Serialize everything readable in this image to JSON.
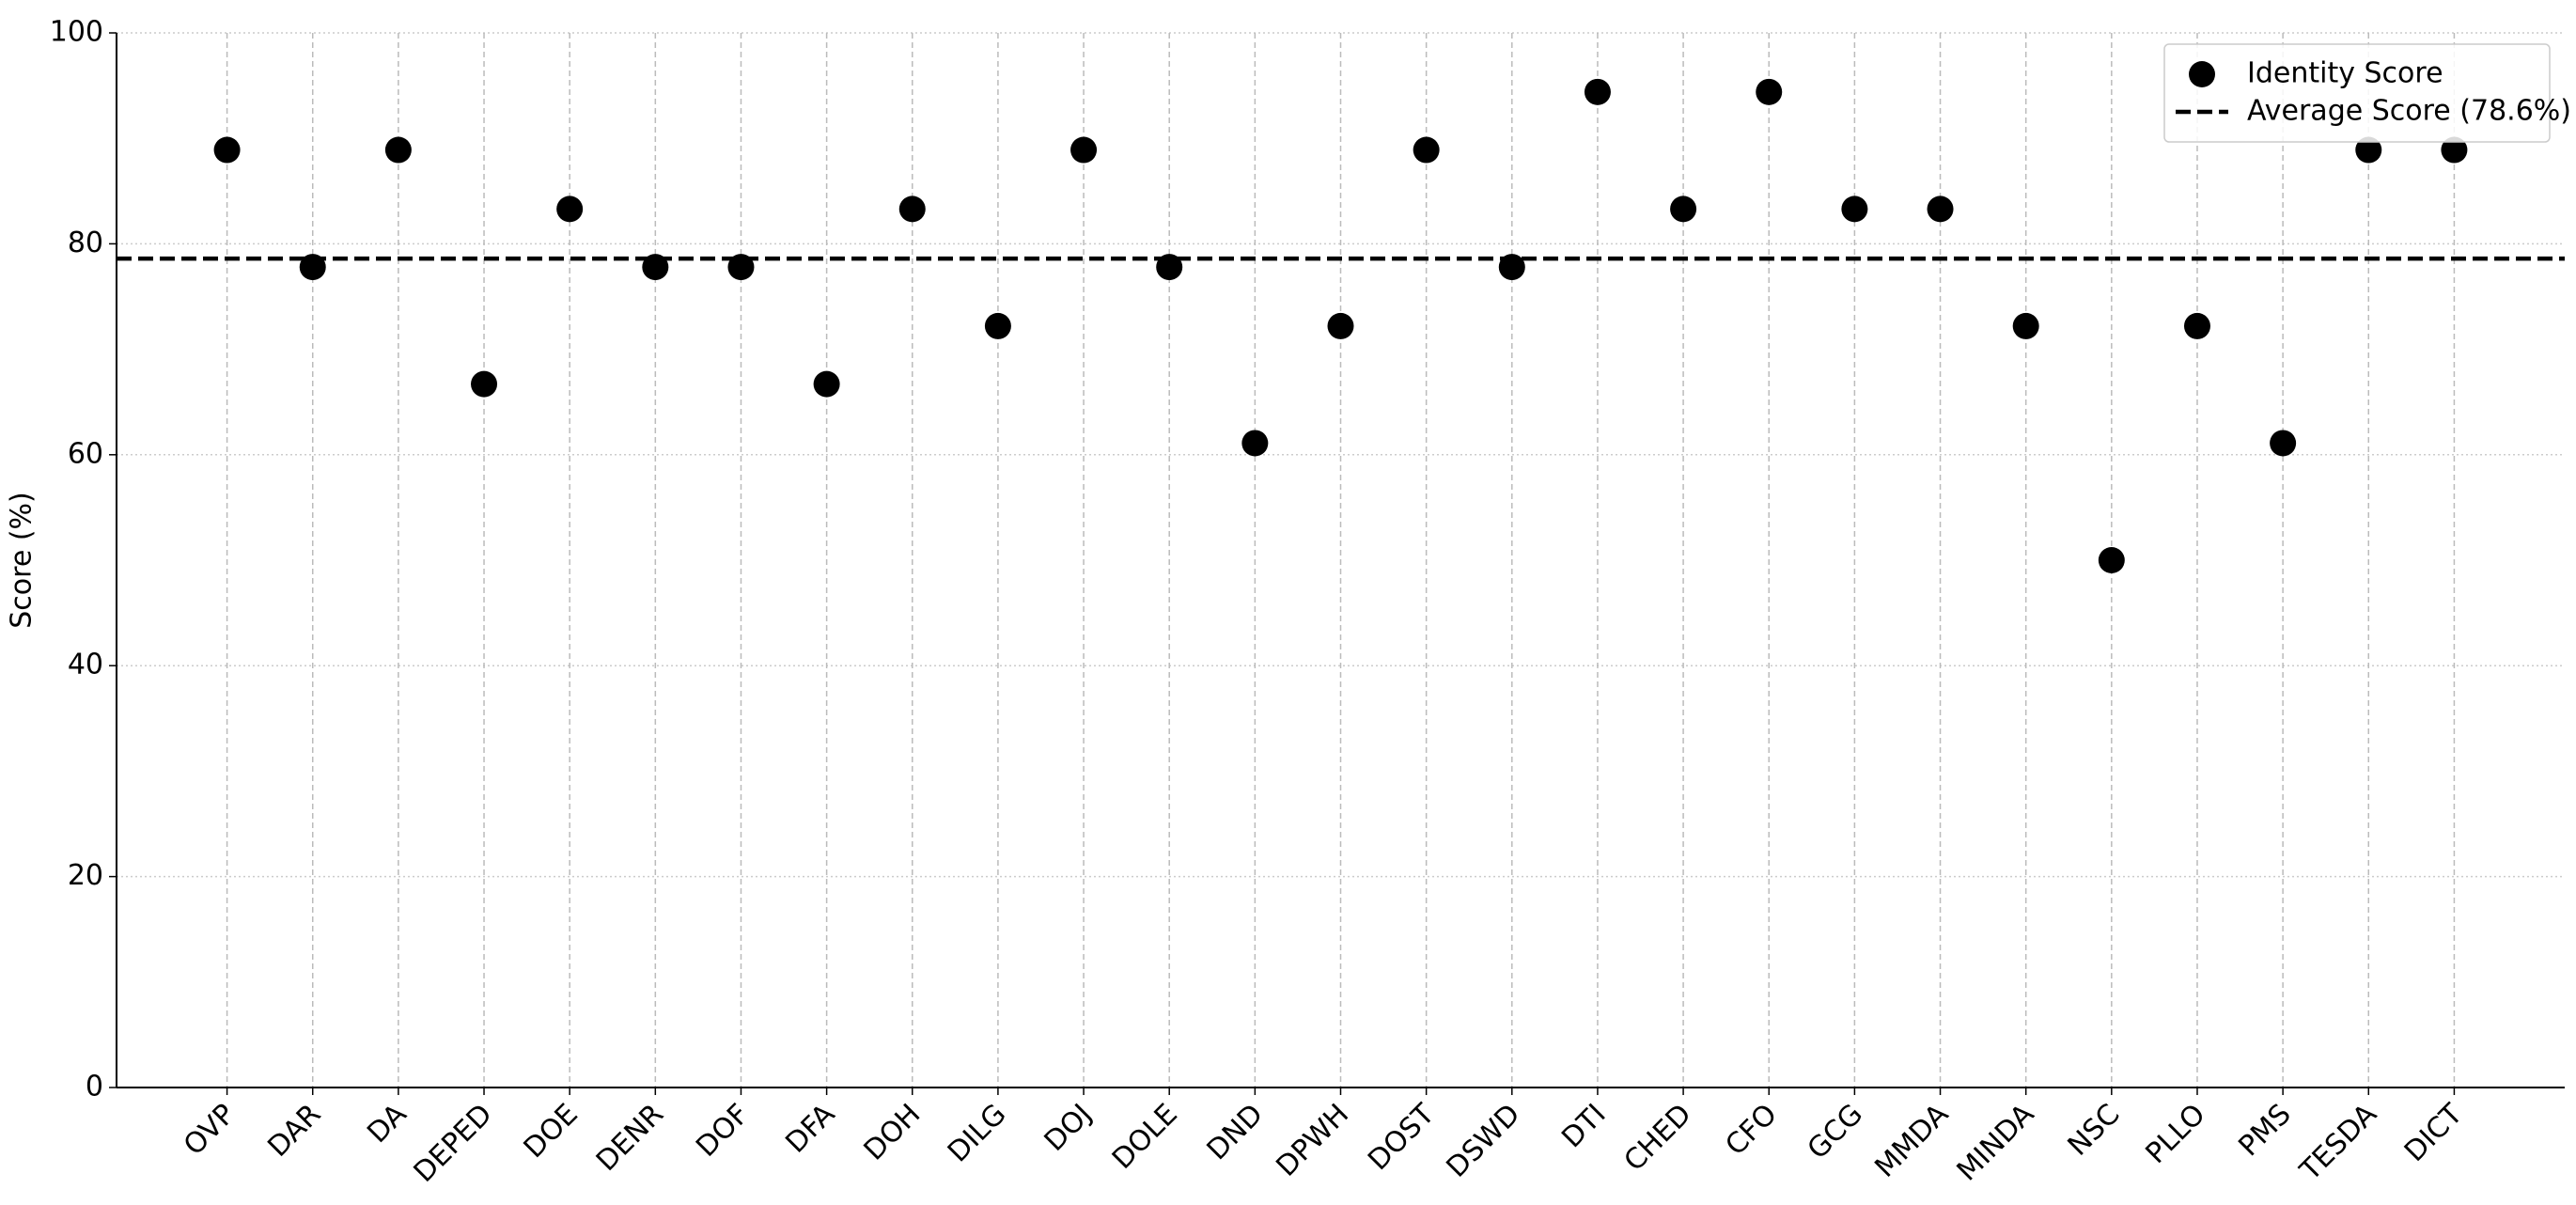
{
  "chart_data": {
    "type": "scatter",
    "y_label": "Score (%)",
    "categories": [
      "OVP",
      "DAR",
      "DA",
      "DEPED",
      "DOE",
      "DENR",
      "DOF",
      "DFA",
      "DOH",
      "DILG",
      "DOJ",
      "DOLE",
      "DND",
      "DPWH",
      "DOST",
      "DSWD",
      "DTI",
      "CHED",
      "CFO",
      "GCG",
      "MMDA",
      "MINDA",
      "NSC",
      "PLLO",
      "PMS",
      "TESDA",
      "DICT"
    ],
    "series": [
      {
        "name": "Identity Score",
        "color": "#000000",
        "values": [
          88.9,
          77.8,
          88.9,
          66.7,
          83.3,
          77.8,
          77.8,
          66.7,
          83.3,
          72.2,
          88.9,
          77.8,
          61.1,
          72.2,
          88.9,
          77.8,
          94.4,
          83.3,
          94.4,
          83.3,
          83.3,
          72.2,
          50,
          72.2,
          61.1,
          88.9,
          88.9
        ]
      }
    ],
    "reference_line": {
      "value": 78.6,
      "label": "Average Score (78.6%)",
      "color": "#000000"
    },
    "ylim": [
      0,
      100
    ],
    "yticks": [
      0,
      20,
      40,
      60,
      80,
      100
    ],
    "grid": true,
    "legend": "upper right"
  }
}
